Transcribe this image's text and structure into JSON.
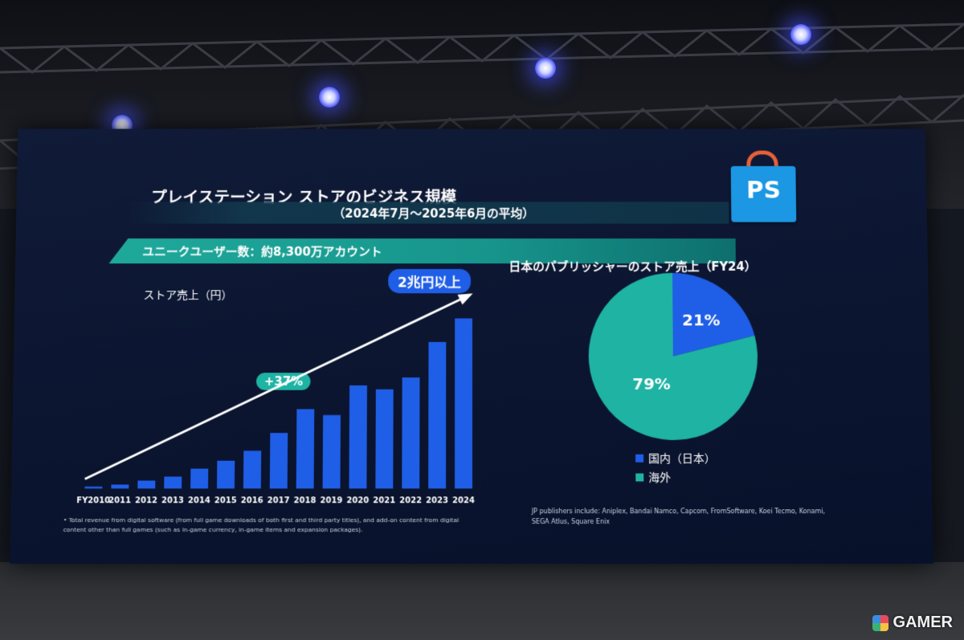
{
  "slide": {
    "title": "プレイステーション ストアのビジネス規模",
    "subtitle": "（2024年7月〜2025年6月の平均）",
    "users_line": "ユニークユーザー数：約8,300万アカウント",
    "logo_icon": "playstation-store-bag-icon",
    "footnote": "Total revenue from digital software (from full game downloads of both first and third party titles), and add-on content from digital content other than full games (such as in-game currency, in-game items and expansion packages).",
    "publishers_note": "JP publishers include: Aniplex, Bandai Namco, Capcom, FromSoftware, Koei Tecmo, Konami, SEGA Atlus, Square Enix"
  },
  "watermark": {
    "text": "GAMER"
  },
  "colors": {
    "bar": "#1f5ee6",
    "teal": "#1eb3a3",
    "screen_bg": "#0b1530"
  },
  "chart_data": [
    {
      "type": "bar",
      "title": "ストア売上（円）",
      "categories": [
        "FY2010",
        "2011",
        "2012",
        "2013",
        "2014",
        "2015",
        "2016",
        "2017",
        "2018",
        "2019",
        "2020",
        "2021",
        "2022",
        "2023",
        "2024"
      ],
      "values": [
        1,
        2,
        4,
        6,
        10,
        14,
        19,
        28,
        40,
        37,
        52,
        50,
        56,
        74,
        86
      ],
      "ylim": [
        0,
        100
      ],
      "annotations": [
        "2兆円以上",
        "+37%"
      ],
      "trend_arrow": true
    },
    {
      "type": "pie",
      "title": "日本のパブリッシャーのストア売上（FY24）",
      "labels": [
        "国内（日本）",
        "海外"
      ],
      "values": [
        21,
        79
      ],
      "value_labels": [
        "21%",
        "79%"
      ],
      "colors": [
        "#1f5ee6",
        "#1eb3a3"
      ]
    }
  ]
}
